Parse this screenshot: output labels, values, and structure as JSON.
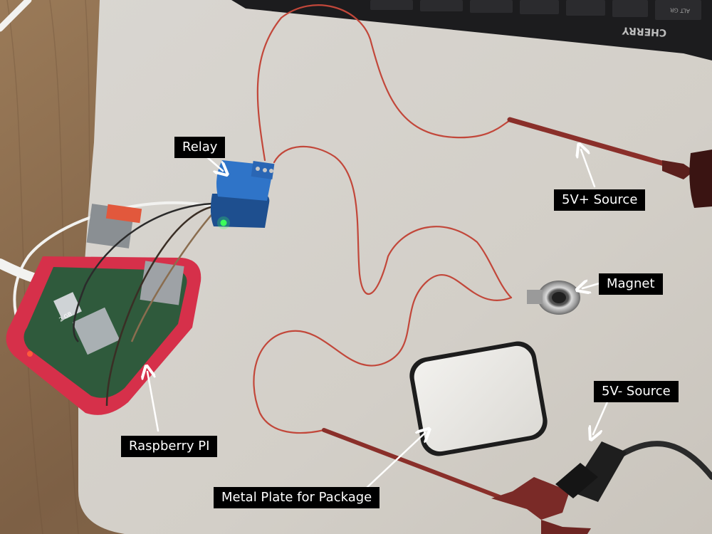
{
  "labels": {
    "relay": "Relay",
    "v5_plus": "5V+ Source",
    "magnet": "Magnet",
    "v5_minus": "5V- Source",
    "raspberry": "Raspberry PI",
    "plate": "Metal Plate for Package"
  },
  "keyboard": {
    "brand": "CHERRY",
    "key_text": "ALT GR"
  },
  "board": {
    "marking": "2 GB"
  },
  "colors": {
    "desk_wood": "#8a6c4e",
    "mat": "#d7d3cd",
    "wire_red": "#c2473a",
    "case_red": "#d6304a",
    "relay_blue": "#2f74c8",
    "label_bg": "#000000",
    "label_text": "#ffffff"
  }
}
